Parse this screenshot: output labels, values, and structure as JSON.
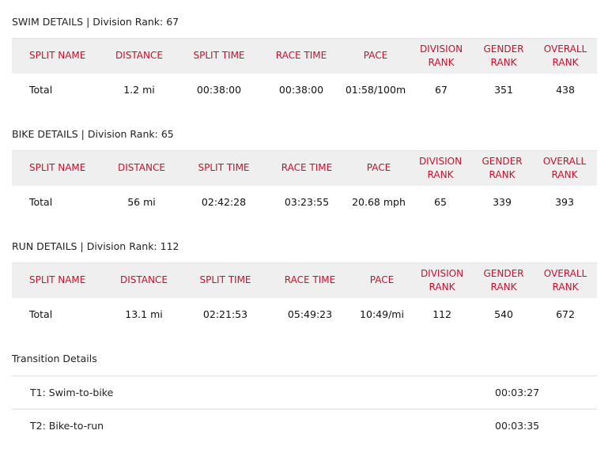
{
  "headers": [
    "SPLIT NAME",
    "DISTANCE",
    "SPLIT TIME",
    "RACE TIME",
    "PACE",
    "DIVISION RANK",
    "GENDER RANK",
    "OVERALL RANK"
  ],
  "swim": {
    "title": "SWIM DETAILS",
    "sep": "|",
    "division_label": "Division Rank:",
    "division_rank": "67",
    "row": [
      "Total",
      "1.2 mi",
      "00:38:00",
      "00:38:00",
      "01:58/100m",
      "67",
      "351",
      "438"
    ]
  },
  "bike": {
    "title": "BIKE DETAILS",
    "sep": "|",
    "division_label": "Division Rank:",
    "division_rank": "65",
    "row": [
      "Total",
      "56 mi",
      "02:42:28",
      "03:23:55",
      "20.68 mph",
      "65",
      "339",
      "393"
    ]
  },
  "run": {
    "title": "RUN DETAILS",
    "sep": "|",
    "division_label": "Division Rank:",
    "division_rank": "112",
    "row": [
      "Total",
      "13.1 mi",
      "02:21:53",
      "05:49:23",
      "10:49/mi",
      "112",
      "540",
      "672"
    ]
  },
  "transitions": {
    "title": "Transition Details",
    "items": [
      {
        "name": "T1: Swim-to-bike",
        "time": "00:03:27"
      },
      {
        "name": "T2: Bike-to-run",
        "time": "00:03:35"
      }
    ]
  },
  "colors": {
    "header_text": "#c8102e",
    "header_bg": "#efefef"
  }
}
